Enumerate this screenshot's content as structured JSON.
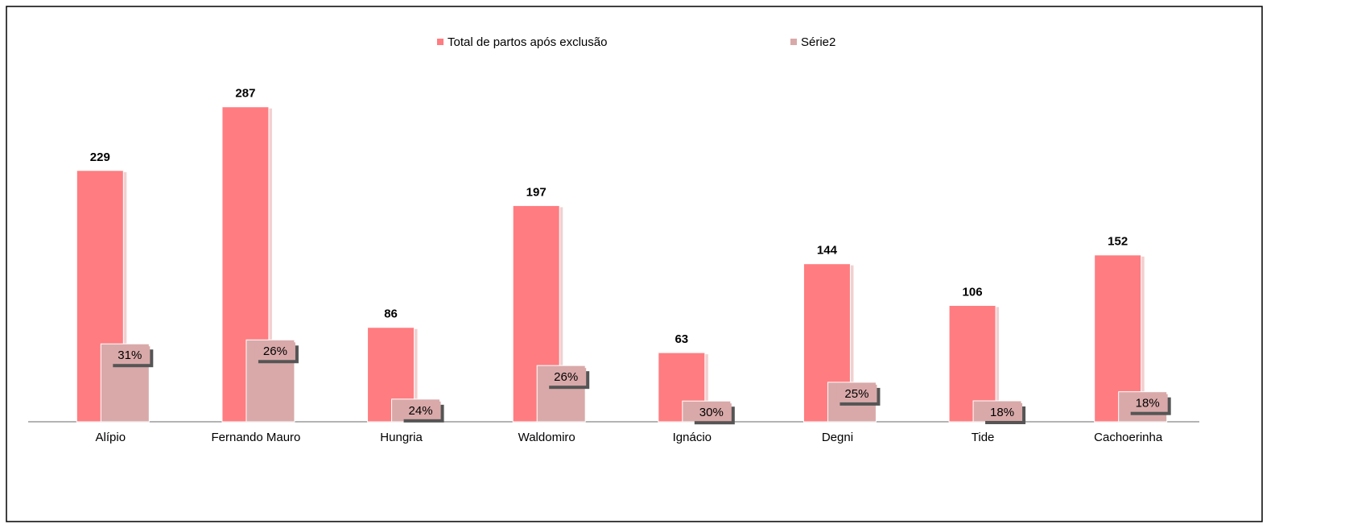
{
  "chart_data": {
    "type": "bar",
    "categories": [
      "Alípio",
      "Fernando Mauro",
      "Hungria",
      "Waldomiro",
      "Ignácio",
      "Degni",
      "Tide",
      "Cachoerinha"
    ],
    "series": [
      {
        "name": "Total de partos após exclusão",
        "color": "#ff7c80",
        "values": [
          229,
          287,
          86,
          197,
          63,
          144,
          106,
          152
        ]
      },
      {
        "name": "Série2",
        "color": "#d9a9a9",
        "values": [
          31,
          26,
          24,
          26,
          30,
          25,
          18,
          18
        ],
        "value_labels": [
          "31%",
          "26%",
          "24%",
          "26%",
          "30%",
          "25%",
          "18%",
          "18%"
        ]
      }
    ],
    "ylim": [
      0,
      300
    ],
    "legend": "top"
  }
}
